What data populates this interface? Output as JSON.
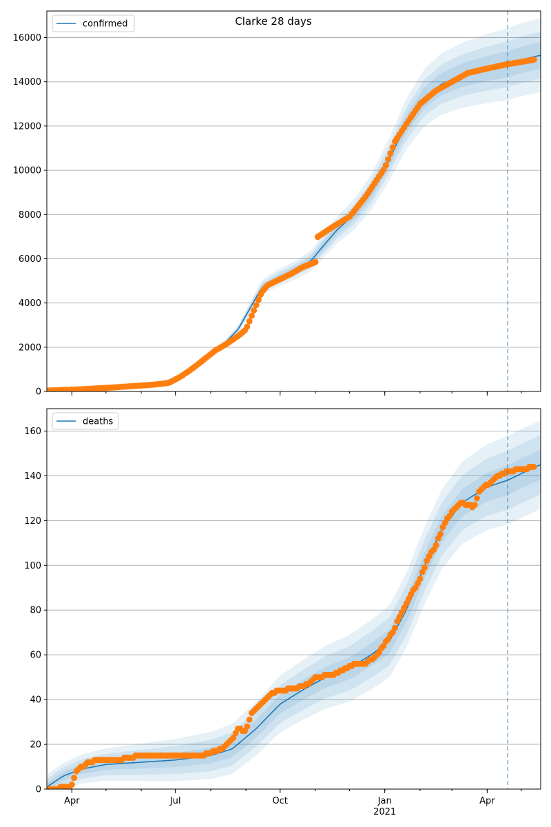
{
  "colors": {
    "model": "#1f77b4",
    "observed": "#ff7f0e",
    "band": "#1f77b4",
    "grid": "#b0b0b0",
    "vline": "#1f77b4"
  },
  "chart_data": [
    {
      "type": "line",
      "title": "Clarke 28 days",
      "legend": {
        "label": "confirmed",
        "placement": "top-left"
      },
      "x_domain": [
        "2020-03-10",
        "2021-05-18"
      ],
      "xticks_major": [
        {
          "date": "2020-04-01",
          "label": "Apr"
        },
        {
          "date": "2020-07-01",
          "label": "Jul"
        },
        {
          "date": "2020-10-01",
          "label": "Oct"
        },
        {
          "date": "2021-01-01",
          "label": "Jan",
          "sub": "2021"
        },
        {
          "date": "2021-04-01",
          "label": "Apr"
        }
      ],
      "ylim": [
        0,
        17200
      ],
      "yticks": [
        0,
        2000,
        4000,
        6000,
        8000,
        10000,
        12000,
        14000,
        16000
      ],
      "grid": "horizontal",
      "forecast_start": "2021-04-19",
      "model": {
        "dates": [
          "2020-03-10",
          "2020-04-10",
          "2020-05-10",
          "2020-06-10",
          "2020-07-01",
          "2020-07-20",
          "2020-08-10",
          "2020-08-25",
          "2020-09-05",
          "2020-09-15",
          "2020-09-28",
          "2020-10-15",
          "2020-10-28",
          "2020-11-05",
          "2020-11-20",
          "2020-12-05",
          "2020-12-20",
          "2021-01-05",
          "2021-01-20",
          "2021-02-05",
          "2021-02-20",
          "2021-03-10",
          "2021-04-01",
          "2021-04-19",
          "2021-05-01",
          "2021-05-18"
        ],
        "values": [
          30,
          100,
          180,
          300,
          550,
          1200,
          2000,
          2800,
          3800,
          4700,
          5100,
          5500,
          5900,
          6400,
          7300,
          8000,
          9000,
          10500,
          12100,
          13300,
          13900,
          14300,
          14600,
          14800,
          15000,
          15200
        ]
      },
      "band_spread": [
        {
          "inner": 0.04,
          "mid": 0.07,
          "outer": 0.11
        },
        {
          "inner": 0.04,
          "mid": 0.07,
          "outer": 0.11
        }
      ],
      "observed": {
        "dates": [
          "2020-03-10",
          "2020-04-10",
          "2020-05-10",
          "2020-06-10",
          "2020-06-25",
          "2020-07-05",
          "2020-07-15",
          "2020-07-25",
          "2020-08-05",
          "2020-08-15",
          "2020-08-25",
          "2020-09-01",
          "2020-09-05",
          "2020-09-10",
          "2020-09-15",
          "2020-09-20",
          "2020-09-28",
          "2020-10-10",
          "2020-10-20",
          "2020-11-01",
          "2020-11-02",
          "2020-11-15",
          "2020-12-01",
          "2020-12-15",
          "2021-01-01",
          "2021-01-10",
          "2021-01-20",
          "2021-02-01",
          "2021-02-15",
          "2021-03-01",
          "2021-03-15",
          "2021-04-01",
          "2021-04-19",
          "2021-05-01",
          "2021-05-12"
        ],
        "values": [
          40,
          100,
          190,
          300,
          380,
          650,
          1000,
          1400,
          1850,
          2150,
          2500,
          2800,
          3300,
          3900,
          4500,
          4800,
          5000,
          5300,
          5600,
          5850,
          6950,
          7400,
          7900,
          8800,
          10100,
          11300,
          12100,
          13000,
          13600,
          14000,
          14400,
          14600,
          14800,
          14900,
          15000
        ]
      }
    },
    {
      "type": "line",
      "title": "",
      "legend": {
        "label": "deaths",
        "placement": "top-left"
      },
      "x_domain": [
        "2020-03-10",
        "2021-05-18"
      ],
      "xticks_major": [
        {
          "date": "2020-04-01",
          "label": "Apr"
        },
        {
          "date": "2020-07-01",
          "label": "Jul"
        },
        {
          "date": "2020-10-01",
          "label": "Oct"
        },
        {
          "date": "2021-01-01",
          "label": "Jan",
          "sub": "2021"
        },
        {
          "date": "2021-04-01",
          "label": "Apr"
        }
      ],
      "ylim": [
        0,
        170
      ],
      "yticks": [
        0,
        20,
        40,
        60,
        80,
        100,
        120,
        140,
        160
      ],
      "grid": "horizontal",
      "forecast_start": "2021-04-19",
      "model": {
        "dates": [
          "2020-03-10",
          "2020-03-25",
          "2020-04-10",
          "2020-05-01",
          "2020-06-01",
          "2020-07-01",
          "2020-08-01",
          "2020-08-20",
          "2020-09-10",
          "2020-10-01",
          "2020-10-20",
          "2020-11-10",
          "2020-12-01",
          "2020-12-20",
          "2021-01-05",
          "2021-01-20",
          "2021-02-05",
          "2021-02-20",
          "2021-03-10",
          "2021-04-01",
          "2021-04-19",
          "2021-05-01",
          "2021-05-18"
        ],
        "values": [
          1,
          6,
          9,
          11,
          12,
          13,
          15,
          18,
          27,
          38,
          44,
          50,
          54,
          60,
          66,
          80,
          100,
          116,
          128,
          135,
          138,
          141,
          145
        ]
      },
      "band_spread_abs": [
        {
          "inner": 3,
          "mid": 6,
          "outer": 9
        }
      ],
      "observed": {
        "dates": [
          "2020-03-10",
          "2020-03-31",
          "2020-04-05",
          "2020-04-15",
          "2020-04-25",
          "2020-05-10",
          "2020-06-01",
          "2020-07-01",
          "2020-07-25",
          "2020-08-10",
          "2020-08-20",
          "2020-08-25",
          "2020-09-01",
          "2020-09-05",
          "2020-09-10",
          "2020-09-18",
          "2020-09-25",
          "2020-10-01",
          "2020-10-15",
          "2020-10-25",
          "2020-11-01",
          "2020-11-15",
          "2020-11-25",
          "2020-12-05",
          "2020-12-15",
          "2020-12-25",
          "2021-01-01",
          "2021-01-08",
          "2021-01-15",
          "2021-01-22",
          "2021-01-30",
          "2021-02-08",
          "2021-02-15",
          "2021-02-22",
          "2021-03-01",
          "2021-03-10",
          "2021-03-20",
          "2021-03-25",
          "2021-04-01",
          "2021-04-10",
          "2021-04-19",
          "2021-05-01",
          "2021-05-12"
        ],
        "values": [
          0,
          1,
          8,
          12,
          13,
          13,
          15,
          15,
          15,
          18,
          22,
          27,
          26,
          33,
          36,
          40,
          43,
          44,
          45,
          47,
          50,
          51,
          53,
          56,
          56,
          60,
          65,
          70,
          78,
          85,
          92,
          103,
          109,
          118,
          124,
          128,
          126,
          133,
          136,
          140,
          142,
          143,
          144
        ]
      }
    }
  ]
}
